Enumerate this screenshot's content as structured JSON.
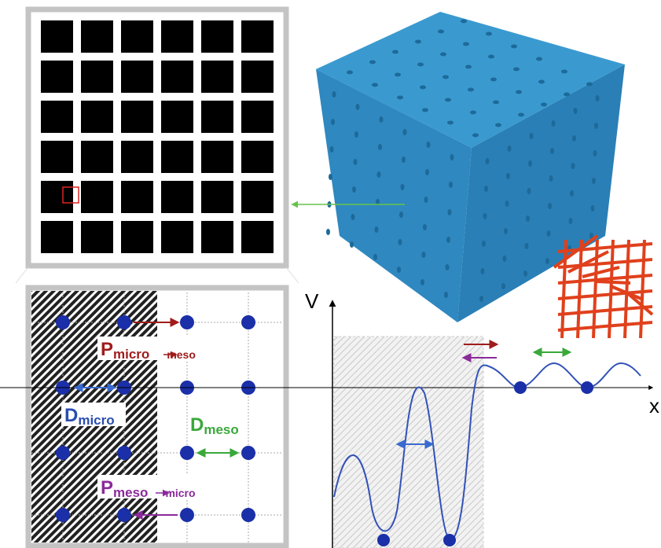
{
  "labels": {
    "v_axis": "V",
    "x_axis": "x",
    "p_micro_meso": {
      "symbol": "P",
      "from": "micro",
      "to": "meso"
    },
    "d_micro": {
      "symbol": "D",
      "sub": "micro"
    },
    "d_meso": {
      "symbol": "D",
      "sub": "meso"
    },
    "p_meso_micro": {
      "symbol": "P",
      "from": "meso",
      "to": "micro"
    }
  }
}
